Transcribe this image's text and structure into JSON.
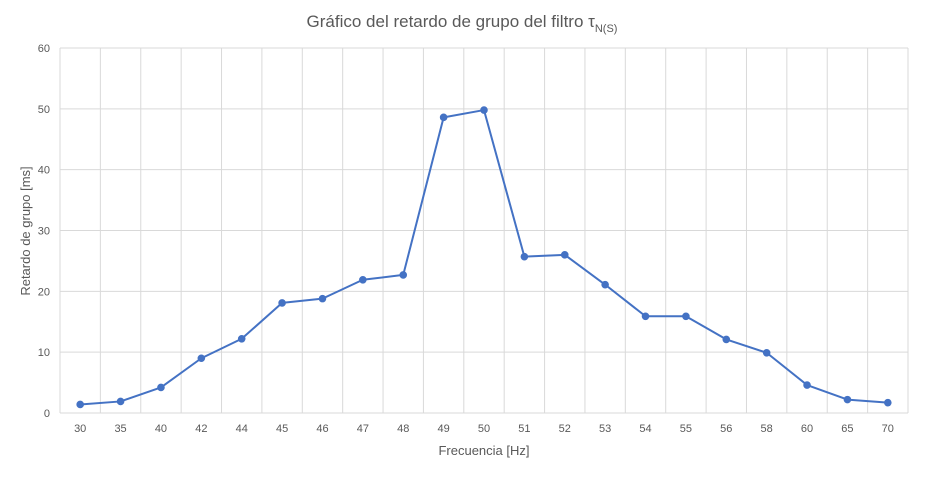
{
  "chart_data": {
    "type": "line",
    "title": {
      "main": "Gráfico del retardo de grupo del filtro τ",
      "subscript": "N(S)"
    },
    "xlabel": "Frecuencia [Hz]",
    "ylabel": "Retardo de grupo [ms]",
    "categories": [
      "30",
      "35",
      "40",
      "42",
      "44",
      "45",
      "46",
      "47",
      "48",
      "49",
      "50",
      "51",
      "52",
      "53",
      "54",
      "55",
      "56",
      "58",
      "60",
      "65",
      "70"
    ],
    "series": [
      {
        "values": [
          1.4,
          1.9,
          4.2,
          9.0,
          12.2,
          18.1,
          18.8,
          21.9,
          22.7,
          48.6,
          49.8,
          25.7,
          26.0,
          21.1,
          15.9,
          15.9,
          12.1,
          9.9,
          4.6,
          2.2,
          1.7
        ],
        "color": "#4472c4"
      }
    ],
    "ylim": [
      0,
      60
    ],
    "yticks": [
      0,
      10,
      20,
      30,
      40,
      50,
      60
    ],
    "grid": true,
    "legend": "none"
  }
}
